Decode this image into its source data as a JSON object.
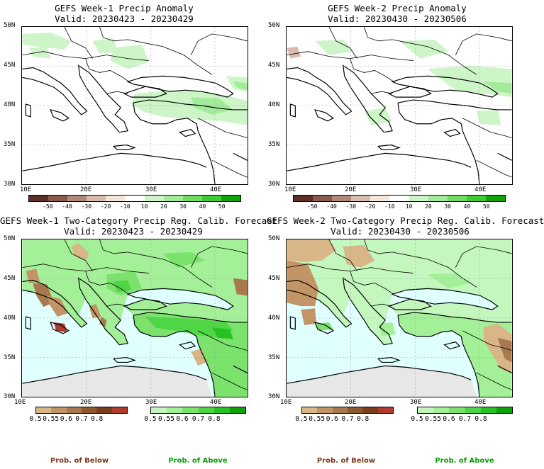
{
  "panels": [
    {
      "title": "GEFS Week-1 Precip Anomaly",
      "valid": "Valid: 20230423 - 20230429"
    },
    {
      "title": "GEFS Week-2 Precip Anomaly",
      "valid": "Valid: 20230430 - 20230506"
    },
    {
      "title": "GEFS Week-1 Two-Category Precip Reg. Calib. Forecast",
      "valid": "Valid: 20230423 - 20230429"
    },
    {
      "title": "GEFS Week-2 Two-Category Precip Reg. Calib. Forecast",
      "valid": "Valid: 20230430 - 20230506"
    }
  ],
  "lat_labels": [
    "50N",
    "45N",
    "40N",
    "35N",
    "30N"
  ],
  "lon_labels": [
    "10E",
    "20E",
    "30E",
    "40E"
  ],
  "anomaly_colorbar": {
    "labels": [
      "-50",
      "-40",
      "-30",
      "-20",
      "-10",
      "10",
      "20",
      "30",
      "40",
      "50"
    ],
    "colors": [
      "#5e2f26",
      "#8a5a4a",
      "#b08a78",
      "#d8bcae",
      "#f5e6dc",
      "#ffffff",
      "#cdf5c8",
      "#a2eb99",
      "#6fdd62",
      "#3fcb34",
      "#0fa50a"
    ]
  },
  "prob_below_colorbar": {
    "labels": [
      "0.5",
      "0.55",
      "0.6",
      "0.7",
      "0.8"
    ],
    "colors": [
      "#d8b687",
      "#c29466",
      "#a8794e",
      "#8c5a2e",
      "#7a3d1d",
      "#b03a2e"
    ]
  },
  "prob_above_colorbar": {
    "labels": [
      "0.5",
      "0.55",
      "0.6",
      "0.7",
      "0.8"
    ],
    "colors": [
      "#c4f7be",
      "#a4f098",
      "#7be36c",
      "#4fd646",
      "#25c322",
      "#0da10a"
    ]
  },
  "legend": {
    "below": "Prob. of Below",
    "above": "Prob. of Above"
  },
  "colors": {
    "land_outline": "#000000",
    "sea_fill": "#e0ffff",
    "no_data_fill": "#e7e7e7",
    "below_text": "#7b3a1a",
    "above_text": "#0aa00a"
  }
}
